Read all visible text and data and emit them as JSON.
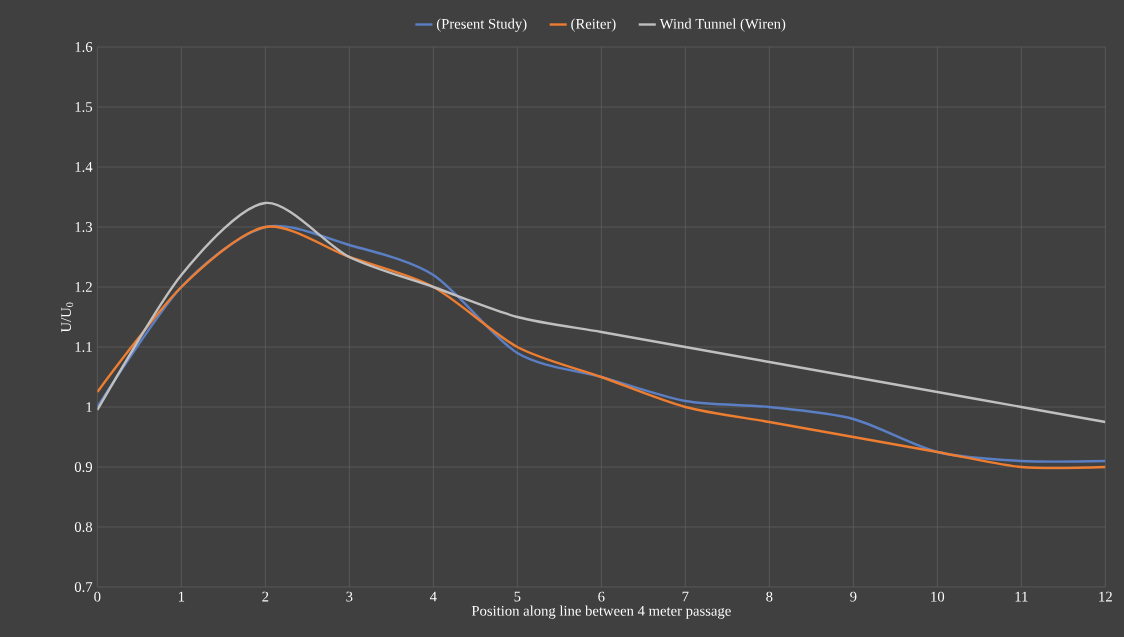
{
  "chart_data": {
    "type": "line",
    "xlabel": "Position along line between 4 meter passage",
    "ylabel": "U/U$_{0}$",
    "x": [
      0,
      1,
      2,
      3,
      4,
      5,
      6,
      7,
      8,
      9,
      10,
      11,
      12
    ],
    "series": [
      {
        "name": "(Present Study)",
        "color": "#5b7fc4",
        "values": [
          1.0,
          1.2,
          1.3,
          1.27,
          1.22,
          1.09,
          1.05,
          1.01,
          1.0,
          0.98,
          0.925,
          0.91,
          0.91
        ]
      },
      {
        "name": "(Reiter)",
        "color": "#ed7d31",
        "values": [
          1.025,
          1.2,
          1.3,
          1.25,
          1.2,
          1.1,
          1.05,
          1.0,
          0.975,
          0.95,
          0.925,
          0.9,
          0.9
        ]
      },
      {
        "name": "Wind Tunnel (Wiren)",
        "color": "#bfbfbf",
        "values": [
          0.995,
          1.22,
          1.34,
          1.25,
          1.2,
          1.15,
          1.125,
          1.1,
          1.075,
          1.05,
          1.025,
          1.0,
          0.975
        ]
      }
    ],
    "xlim": [
      0,
      12
    ],
    "xticks": [
      0,
      1,
      2,
      3,
      4,
      5,
      6,
      7,
      8,
      9,
      10,
      11,
      12
    ],
    "ylim": [
      0.7,
      1.6
    ],
    "yticks": [
      {
        "value": 0.7,
        "label": "0.7"
      },
      {
        "value": 0.8,
        "label": "0.8"
      },
      {
        "value": 0.9,
        "label": "0.9"
      },
      {
        "value": 1.0,
        "label": "1"
      },
      {
        "value": 1.1,
        "label": "1.1"
      },
      {
        "value": 1.2,
        "label": "1.2"
      },
      {
        "value": 1.3,
        "label": "1.3"
      },
      {
        "value": 1.4,
        "label": "1.4"
      },
      {
        "value": 1.5,
        "label": "1.5"
      },
      {
        "value": 1.6,
        "label": "1.6"
      }
    ],
    "grid": true,
    "legend": "top",
    "marker": "none",
    "line_style": "solid"
  }
}
